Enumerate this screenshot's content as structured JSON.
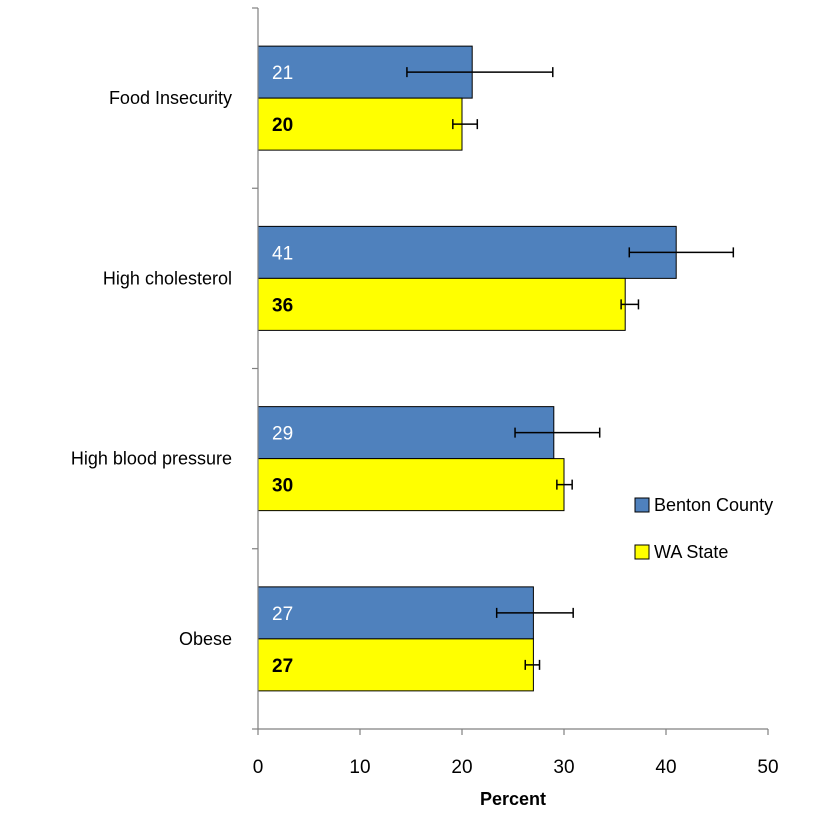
{
  "chart_data": {
    "type": "bar",
    "orientation": "horizontal",
    "categories": [
      "Food Insecurity",
      "High cholesterol",
      "High blood pressure",
      "Obese"
    ],
    "series": [
      {
        "name": "Benton County",
        "color": "#4F81BD",
        "values": [
          21,
          41,
          29,
          27
        ],
        "error_low": [
          14.6,
          36.4,
          25.2,
          23.4
        ],
        "error_high": [
          28.9,
          46.6,
          33.5,
          30.9
        ],
        "label_color": "#ffffff"
      },
      {
        "name": "WA State",
        "color": "#FFFF00",
        "values": [
          20,
          36,
          30,
          27
        ],
        "error_low": [
          19.1,
          35.6,
          29.3,
          26.2
        ],
        "error_high": [
          21.5,
          37.3,
          30.8,
          27.6
        ],
        "label_color": "#000000"
      }
    ],
    "value_labels": [
      [
        "21",
        "41",
        "29",
        "27"
      ],
      [
        "20",
        "36",
        "30",
        "27"
      ]
    ],
    "xlabel": "Percent",
    "xlim": [
      0,
      50
    ],
    "xticks": [
      0,
      10,
      20,
      30,
      40,
      50
    ],
    "xtick_labels": [
      "0",
      "10",
      "20",
      "30",
      "40",
      "50"
    ],
    "grid": false,
    "legend": [
      "Benton County",
      "WA State"
    ],
    "legend_position": "right"
  }
}
